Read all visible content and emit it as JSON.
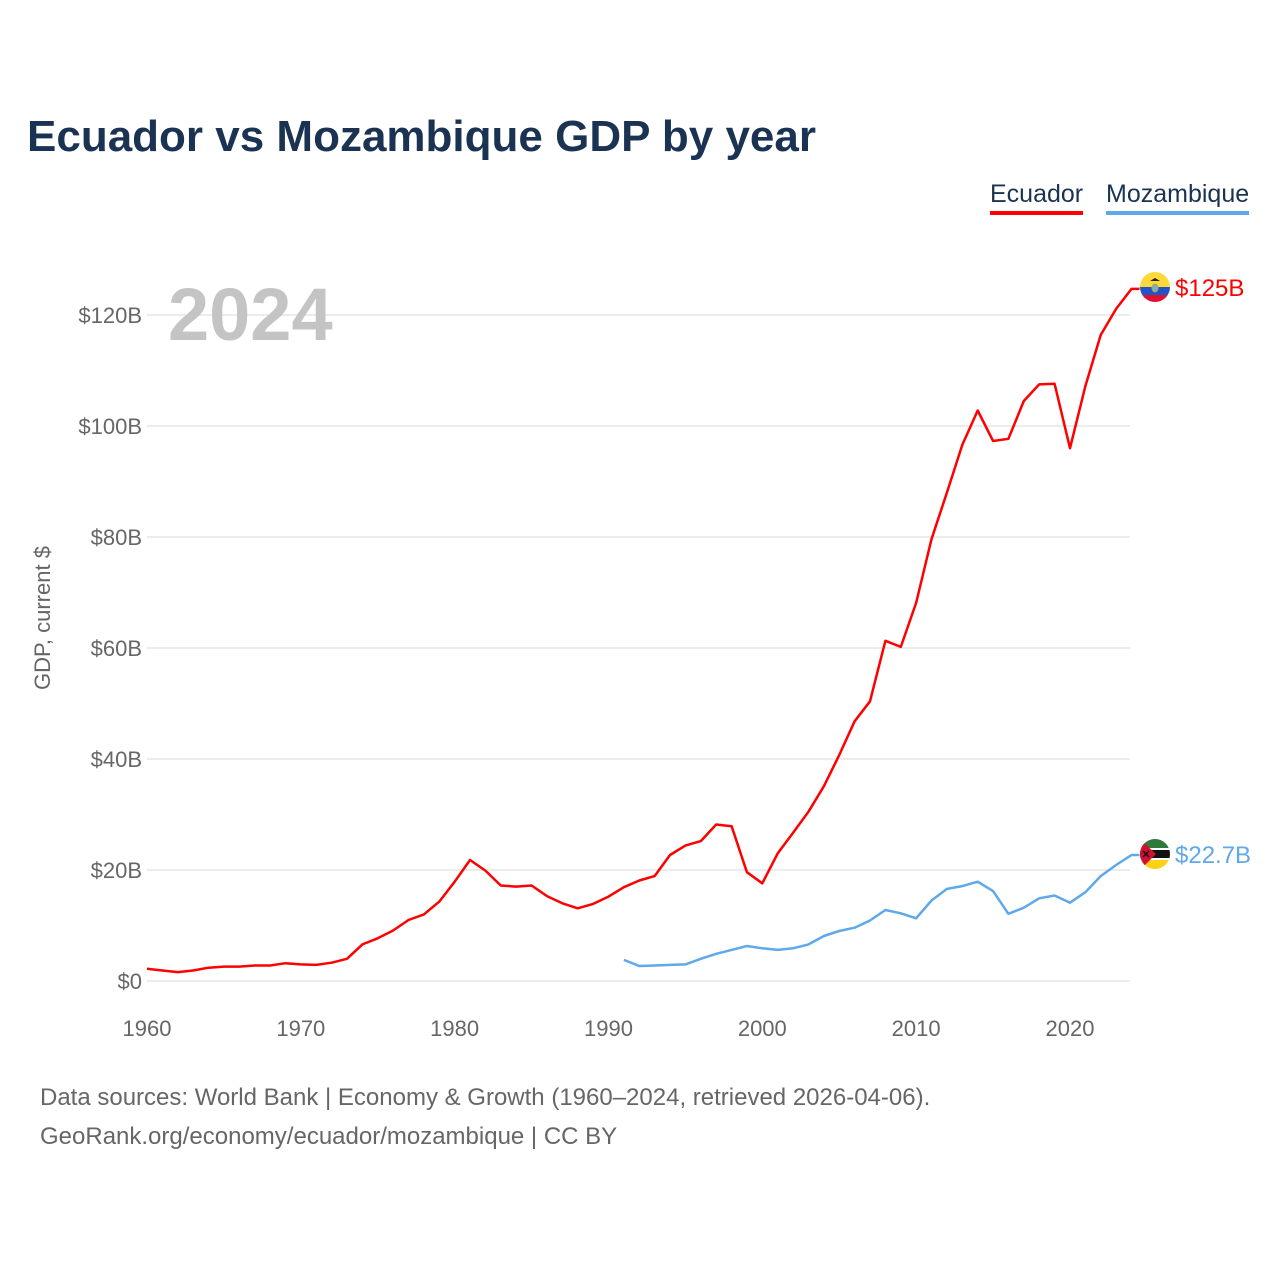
{
  "title": "Ecuador vs Mozambique GDP by year",
  "legend": [
    {
      "label": "Ecuador"
    },
    {
      "label": "Mozambique"
    }
  ],
  "year_label": "2024",
  "footer": {
    "line1": "Data sources: World Bank | Economy & Growth (1960–2024, retrieved 2026-04-06).",
    "line2": "GeoRank.org/economy/ecuador/mozambique | CC BY"
  },
  "chart_data": {
    "type": "line",
    "title": "Ecuador vs Mozambique GDP by year",
    "xlabel": "",
    "ylabel": "GDP, current $",
    "xlim": [
      1960,
      2024
    ],
    "ylim": [
      0,
      125
    ],
    "grid": true,
    "legend_position": "top-right",
    "x_ticks": [
      1960,
      1970,
      1980,
      1990,
      2000,
      2010,
      2020
    ],
    "y_ticks": [
      0,
      20,
      40,
      60,
      80,
      100,
      120
    ],
    "y_tick_labels": [
      "$0",
      "$20B",
      "$40B",
      "$60B",
      "$80B",
      "$100B",
      "$120B"
    ],
    "series": [
      {
        "name": "Ecuador",
        "color": "#ff0000",
        "start_year": 1960,
        "end_label": "$125B",
        "flag": "ecuador-flag",
        "values": [
          2.2,
          1.9,
          1.6,
          1.9,
          2.4,
          2.6,
          2.6,
          2.8,
          2.8,
          3.2,
          3.0,
          2.9,
          3.3,
          4.0,
          6.6,
          7.7,
          9.1,
          11.0,
          12.0,
          14.3,
          17.9,
          21.8,
          19.9,
          17.2,
          17.0,
          17.2,
          15.3,
          14.0,
          13.1,
          13.9,
          15.2,
          16.9,
          18.1,
          18.9,
          22.7,
          24.4,
          25.2,
          28.2,
          27.9,
          19.6,
          17.6,
          23.0,
          26.7,
          30.5,
          35.1,
          40.7,
          46.8,
          50.4,
          61.3,
          60.2,
          68.1,
          79.6,
          88.0,
          96.6,
          102.8,
          97.3,
          97.7,
          104.5,
          107.5,
          107.6,
          96.0,
          107.2,
          116.4,
          121.1,
          124.7
        ]
      },
      {
        "name": "Mozambique",
        "color": "#5fa8ea",
        "start_year": 1991,
        "end_label": "$22.7B",
        "flag": "mozambique-flag",
        "values": [
          3.8,
          2.7,
          2.8,
          2.9,
          3.0,
          4.0,
          4.9,
          5.6,
          6.3,
          5.9,
          5.6,
          5.9,
          6.6,
          8.1,
          9.0,
          9.6,
          10.9,
          12.8,
          12.2,
          11.3,
          14.5,
          16.6,
          17.1,
          17.9,
          16.2,
          12.1,
          13.2,
          14.9,
          15.4,
          14.1,
          16.0,
          18.9,
          20.9,
          22.7
        ]
      }
    ]
  }
}
